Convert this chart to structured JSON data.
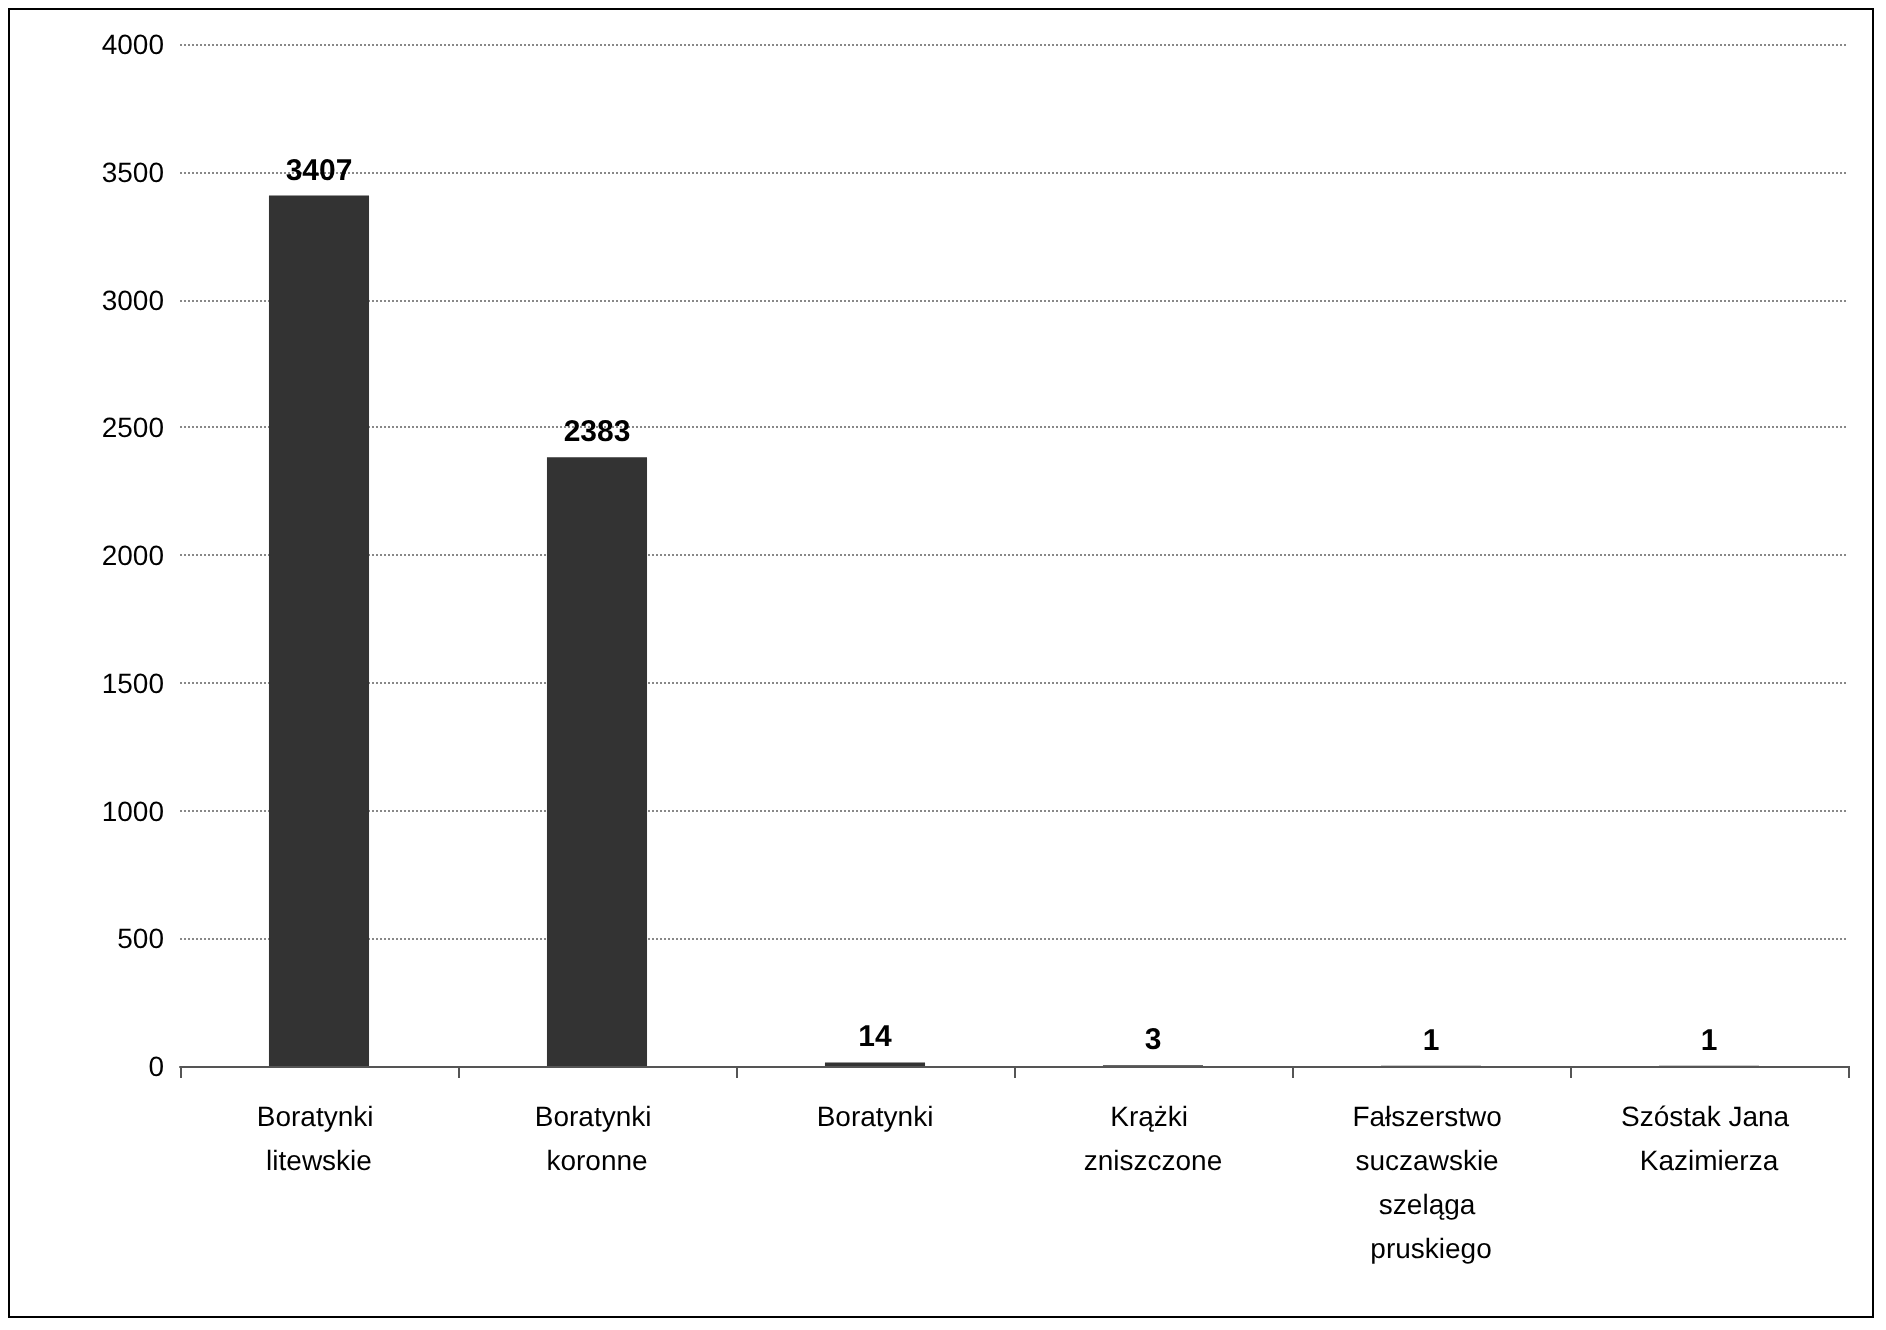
{
  "chart_data": {
    "type": "bar",
    "categories": [
      "Boratynki litewskie",
      "Boratynki koronne",
      "Boratynki",
      "Krążki zniszczone",
      "Fałszerstwo suczawskie szeląga pruskiego",
      "Szóstak Jana Kazimierza"
    ],
    "values": [
      3407,
      2383,
      14,
      3,
      1,
      1
    ],
    "color": "#333333",
    "ylim": [
      0,
      4000
    ],
    "yticks": [
      0,
      500,
      1000,
      1500,
      2000,
      2500,
      3000,
      3500,
      4000
    ],
    "grid": "y",
    "data_labels": true
  }
}
